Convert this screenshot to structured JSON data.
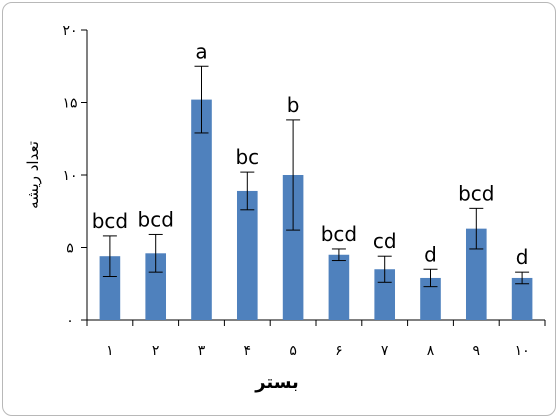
{
  "chart_data": {
    "type": "bar",
    "categories": [
      "۱",
      "۲",
      "۳",
      "۴",
      "۵",
      "۶",
      "۷",
      "۸",
      "۹",
      "۱۰"
    ],
    "values": [
      4.4,
      4.6,
      15.2,
      8.9,
      10.0,
      4.5,
      3.5,
      2.9,
      6.3,
      2.9
    ],
    "errors": [
      1.4,
      1.3,
      2.3,
      1.3,
      3.8,
      0.4,
      0.9,
      0.6,
      1.4,
      0.4
    ],
    "letters": [
      "bcd",
      "bcd",
      "a",
      "bc",
      "b",
      "bcd",
      "cd",
      "d",
      "bcd",
      "d"
    ],
    "yticks": [
      0,
      5,
      10,
      15,
      20
    ],
    "ytick_labels": [
      "۰",
      "۵",
      "۱۰",
      "۱۵",
      "۲۰"
    ],
    "ylim": [
      0,
      20
    ],
    "xlabel": "بستر",
    "ylabel": "تعداد ریشه",
    "grid": false,
    "colors": {
      "bar": "#4f81bd",
      "axis": "#000000",
      "text": "#000000"
    }
  }
}
